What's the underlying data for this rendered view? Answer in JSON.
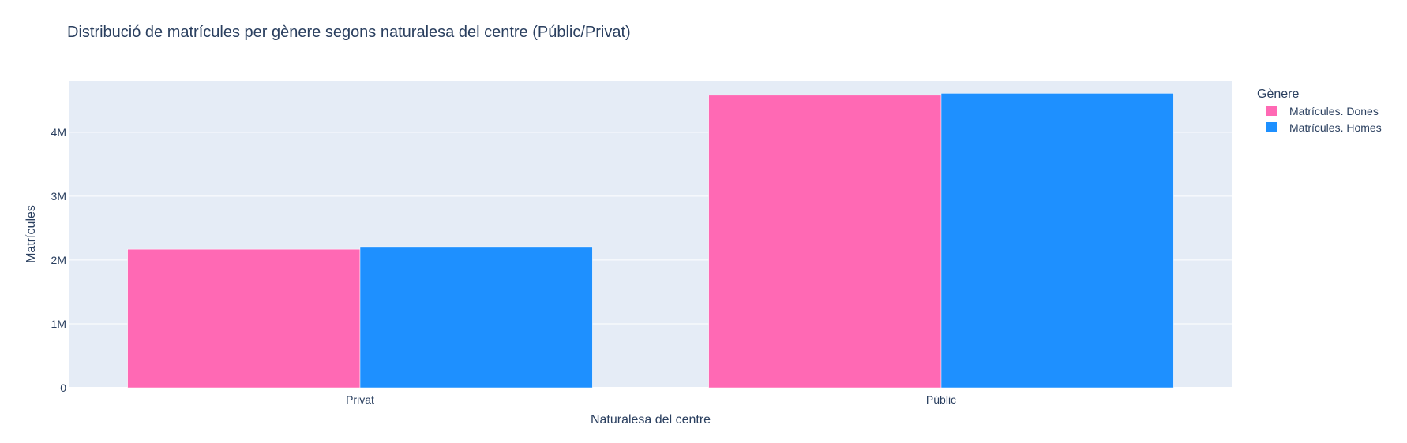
{
  "chart_data": {
    "type": "bar",
    "barmode": "group",
    "title": "Distribució de matrícules per gènere segons naturalesa del centre (Públic/Privat)",
    "xlabel": "Naturalesa del centre",
    "ylabel": "Matrícules",
    "categories": [
      "Privat",
      "Públic"
    ],
    "series": [
      {
        "name": "Matrícules. Dones",
        "color": "#ff69b4",
        "values": [
          2170000,
          4580000
        ]
      },
      {
        "name": "Matrícules. Homes",
        "color": "#1e90ff",
        "values": [
          2210000,
          4610000
        ]
      }
    ],
    "ylim": [
      0,
      4800000
    ],
    "yticks": [
      {
        "value": 0,
        "label": "0"
      },
      {
        "value": 1000000,
        "label": "1M"
      },
      {
        "value": 2000000,
        "label": "2M"
      },
      {
        "value": 3000000,
        "label": "3M"
      },
      {
        "value": 4000000,
        "label": "4M"
      }
    ],
    "legend": {
      "title": "Gènere",
      "position": "top-right"
    },
    "plot_background": "#e5ecf6",
    "grid": true
  }
}
